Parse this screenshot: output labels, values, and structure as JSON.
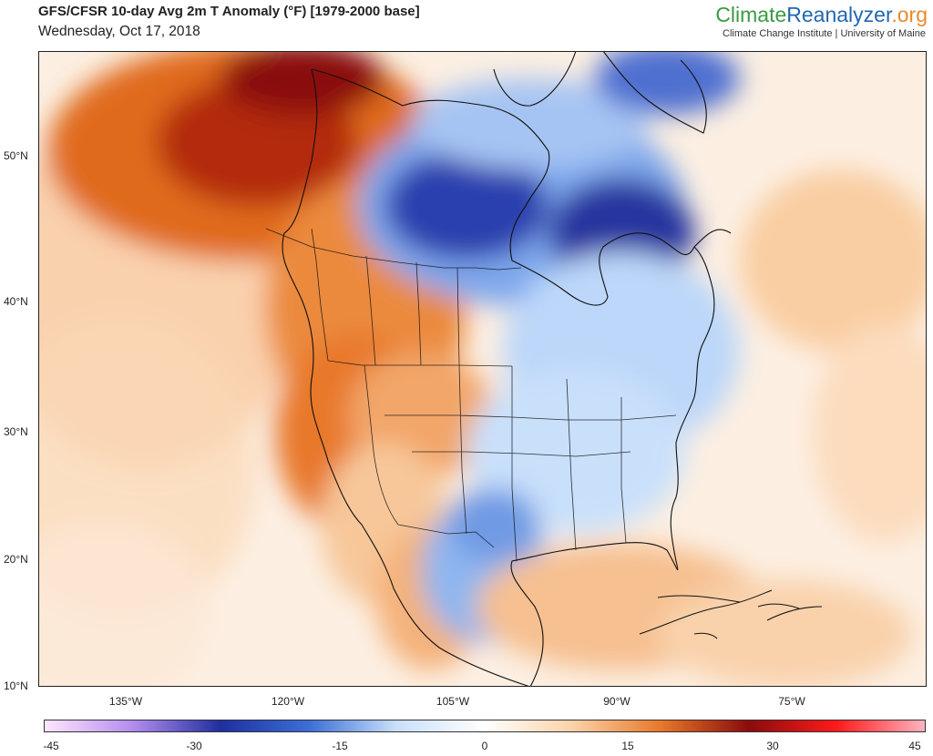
{
  "header": {
    "title": "GFS/CFSR 10-day Avg 2m T Anomaly (°F) [1979-2000 base]",
    "date": "Wednesday, Oct 17, 2018",
    "brand_part1": "Climate",
    "brand_part2": "Reanalyzer",
    "brand_part3": ".org",
    "credit": "Climate Change Institute | University of Maine"
  },
  "map": {
    "lat_labels": [
      "50°N",
      "40°N",
      "30°N",
      "20°N",
      "10°N"
    ],
    "lon_labels": [
      "135°W",
      "120°W",
      "105°W",
      "90°W",
      "75°W"
    ]
  },
  "colorbar": {
    "ticks": [
      "-45",
      "-30",
      "-15",
      "0",
      "15",
      "30",
      "45"
    ],
    "range": [
      -45,
      45
    ],
    "colors": {
      "cold_extreme": "#ffe6ff",
      "purple": "#b48cf0",
      "deep_blue": "#1f2f9e",
      "blue": "#3b6fd6",
      "light_blue": "#c9e0fb",
      "neutral": "#ffffff",
      "light_orange": "#fbd2a8",
      "orange": "#e8782a",
      "dark_red": "#8a0c0c",
      "red": "#ff1a1a",
      "warm_extreme": "#ffb4c0"
    }
  }
}
